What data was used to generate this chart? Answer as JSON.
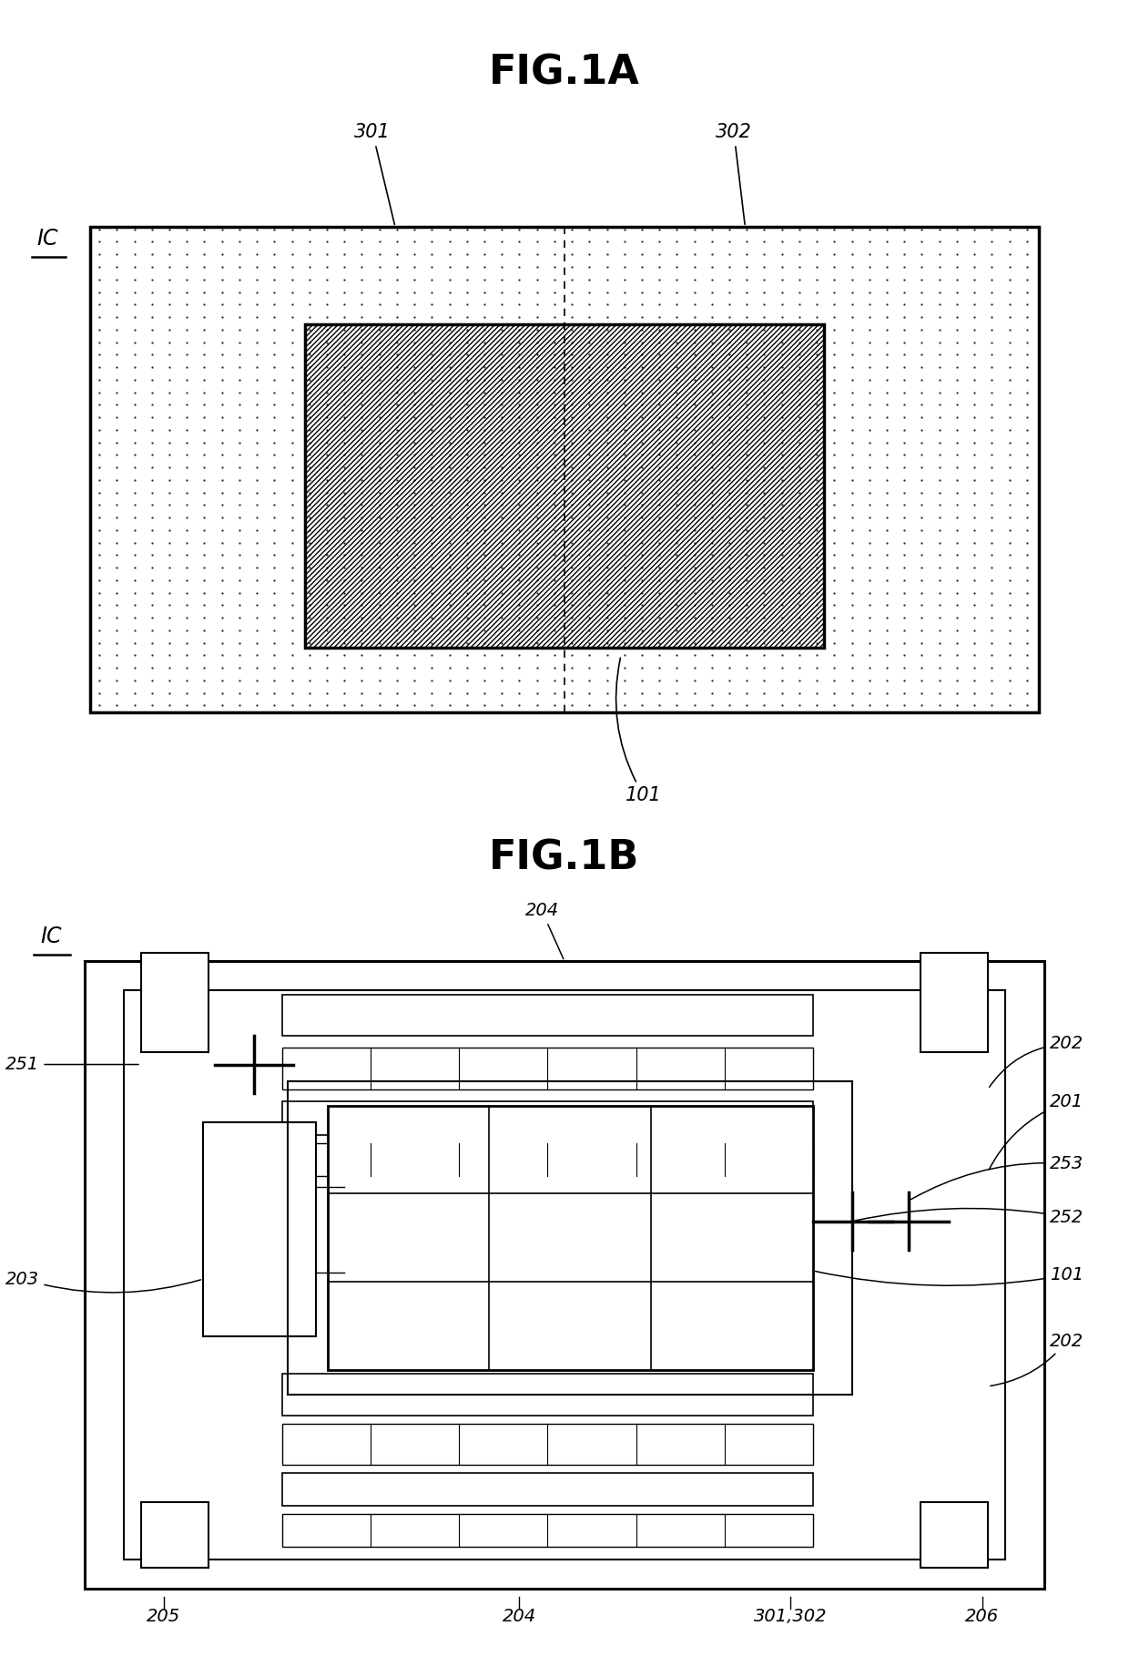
{
  "fig1a_title": "FIG.1A",
  "fig1b_title": "FIG.1B",
  "bg_color": "#ffffff"
}
